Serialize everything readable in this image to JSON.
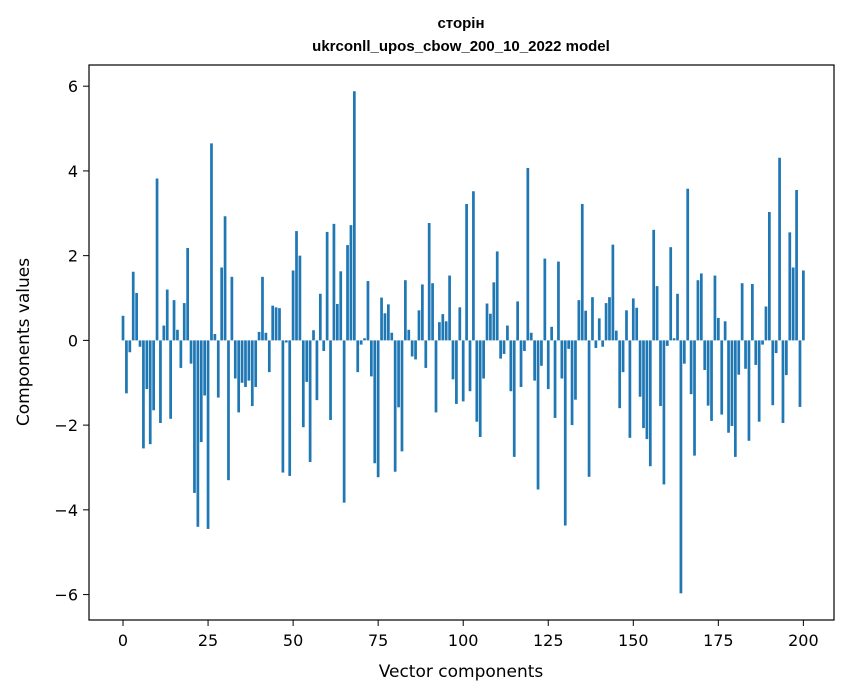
{
  "chart_data": {
    "type": "bar",
    "title_line1": "сторін",
    "title_line2": "ukrconll_upos_cbow_200_10_2022 model",
    "xlabel": "Vector components",
    "ylabel": "Components values",
    "xlim": [
      -10,
      209
    ],
    "ylim": [
      -6.6,
      6.5
    ],
    "xticks": [
      0,
      25,
      50,
      75,
      100,
      125,
      150,
      175,
      200
    ],
    "yticks": [
      -6,
      -4,
      -2,
      0,
      2,
      4,
      6
    ],
    "bar_color": "#1f77b4",
    "grid": false,
    "values": [
      0.58,
      -1.25,
      -0.28,
      1.62,
      1.12,
      -0.15,
      -2.55,
      -1.15,
      -2.45,
      -1.65,
      3.82,
      -1.95,
      0.35,
      1.2,
      -1.85,
      0.95,
      0.25,
      -0.65,
      0.88,
      2.18,
      -0.55,
      -3.6,
      -4.4,
      -2.4,
      -1.3,
      -4.45,
      4.65,
      0.15,
      -1.35,
      1.72,
      2.93,
      -3.3,
      1.5,
      -0.9,
      -1.7,
      -1.0,
      -1.1,
      -0.95,
      -1.55,
      -1.1,
      0.2,
      1.5,
      0.18,
      -0.75,
      0.82,
      0.78,
      0.76,
      -3.12,
      -0.05,
      -3.2,
      1.65,
      2.58,
      2.0,
      -2.05,
      -0.98,
      -2.87,
      0.24,
      -1.41,
      1.1,
      -0.25,
      2.56,
      -1.88,
      2.75,
      0.86,
      1.63,
      -3.83,
      2.25,
      2.72,
      5.88,
      -0.75,
      -0.1,
      0.05,
      1.4,
      -0.85,
      -2.9,
      -3.23,
      1.01,
      0.64,
      0.85,
      0.18,
      -3.1,
      -1.58,
      -2.62,
      1.42,
      0.25,
      -0.38,
      -0.45,
      0.71,
      1.32,
      -0.65,
      2.77,
      1.35,
      -1.7,
      0.43,
      0.62,
      0.45,
      1.53,
      -0.92,
      -1.5,
      0.78,
      -1.44,
      3.22,
      -1.2,
      3.52,
      -1.92,
      -2.28,
      -0.9,
      0.87,
      0.63,
      1.37,
      2.1,
      -0.43,
      -0.32,
      0.35,
      -1.2,
      -2.75,
      0.92,
      -1.1,
      -0.25,
      4.07,
      0.18,
      -0.95,
      -3.52,
      -0.6,
      1.93,
      -1.15,
      0.32,
      -1.83,
      1.86,
      -0.9,
      -4.37,
      -0.2,
      -2.0,
      -1.4,
      0.95,
      3.22,
      0.7,
      -3.22,
      1.02,
      -0.18,
      0.52,
      -0.15,
      0.88,
      1.02,
      2.26,
      0.23,
      -1.6,
      -0.75,
      0.71,
      -2.3,
      0.99,
      0.77,
      -1.33,
      -2.07,
      -2.33,
      -2.97,
      2.61,
      1.28,
      -1.55,
      -3.4,
      -0.13,
      2.2,
      0.05,
      1.1,
      -5.97,
      -0.55,
      3.58,
      -1.27,
      -2.72,
      1.42,
      1.58,
      -0.7,
      -1.54,
      -1.9,
      1.53,
      0.53,
      -1.75,
      0.45,
      -2.18,
      -2.02,
      -2.75,
      -0.81,
      1.35,
      -0.67,
      -2.37,
      1.33,
      -0.58,
      -1.92,
      -0.1,
      0.8,
      3.03,
      -1.53,
      -0.3,
      4.31,
      -1.95,
      -0.82,
      2.55,
      1.72,
      3.55,
      -1.57,
      1.65
    ]
  }
}
